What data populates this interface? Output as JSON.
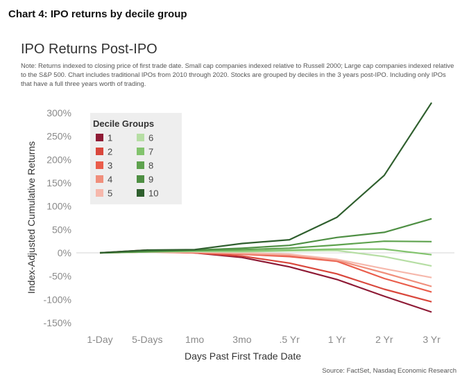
{
  "page": {
    "heading": "Chart 4: IPO returns by decile group",
    "source": "Source: FactSet, Nasdaq Economic Research"
  },
  "chart_data": {
    "type": "line",
    "title": "IPO Returns Post-IPO",
    "note": "Note: Returns indexed to closing price of first trade date. Small cap companies indexed relative to Russell 2000; Large cap companies indexed relative to the S&P 500. Chart includes traditional IPOs from 2010 through 2020. Stocks are grouped by deciles in the 3 years post-IPO. Including only IPOs that have a full three years worth of trading.",
    "xlabel": "Days Past First Trade Date",
    "ylabel": "Index-Adjusted Cumulative Returns",
    "categories": [
      "1-Day",
      "5-Days",
      "1mo",
      "3mo",
      ".5 Yr",
      "1 Yr",
      "2 Yr",
      "3 Yr"
    ],
    "y_ticks": [
      "300%",
      "250%",
      "200%",
      "150%",
      "100%",
      "50%",
      "0%",
      "-50%",
      "-100%",
      "-150%"
    ],
    "ylim": [
      -150,
      300
    ],
    "grid": false,
    "legend": {
      "title": "Decile Groups",
      "placement": "top-left"
    },
    "series": [
      {
        "name": "1",
        "color": "#8e1a35",
        "values": [
          0,
          6,
          0,
          -10,
          -30,
          -57,
          -93,
          -127
        ]
      },
      {
        "name": "2",
        "color": "#d9473c",
        "values": [
          0,
          3,
          0,
          -7,
          -22,
          -45,
          -78,
          -105
        ]
      },
      {
        "name": "3",
        "color": "#ea5d4b",
        "values": [
          0,
          2,
          0,
          -3,
          -8,
          -18,
          -55,
          -84
        ]
      },
      {
        "name": "4",
        "color": "#f08f7c",
        "values": [
          0,
          2,
          1,
          -2,
          -5,
          -16,
          -43,
          -72
        ]
      },
      {
        "name": "5",
        "color": "#f6b8ac",
        "values": [
          0,
          2,
          2,
          0,
          -3,
          -14,
          -34,
          -53
        ]
      },
      {
        "name": "6",
        "color": "#b6dea4",
        "values": [
          0,
          2,
          3,
          2,
          4,
          5,
          -8,
          -28
        ]
      },
      {
        "name": "7",
        "color": "#82c36d",
        "values": [
          0,
          2,
          4,
          4,
          6,
          8,
          8,
          -4
        ]
      },
      {
        "name": "8",
        "color": "#5ea24e",
        "values": [
          0,
          3,
          5,
          7,
          10,
          17,
          25,
          24
        ]
      },
      {
        "name": "9",
        "color": "#4e8f43",
        "values": [
          0,
          3,
          6,
          10,
          16,
          33,
          44,
          73
        ]
      },
      {
        "name": "10",
        "color": "#2f5f2e",
        "values": [
          0,
          6,
          7,
          20,
          28,
          76,
          166,
          322
        ]
      }
    ]
  }
}
